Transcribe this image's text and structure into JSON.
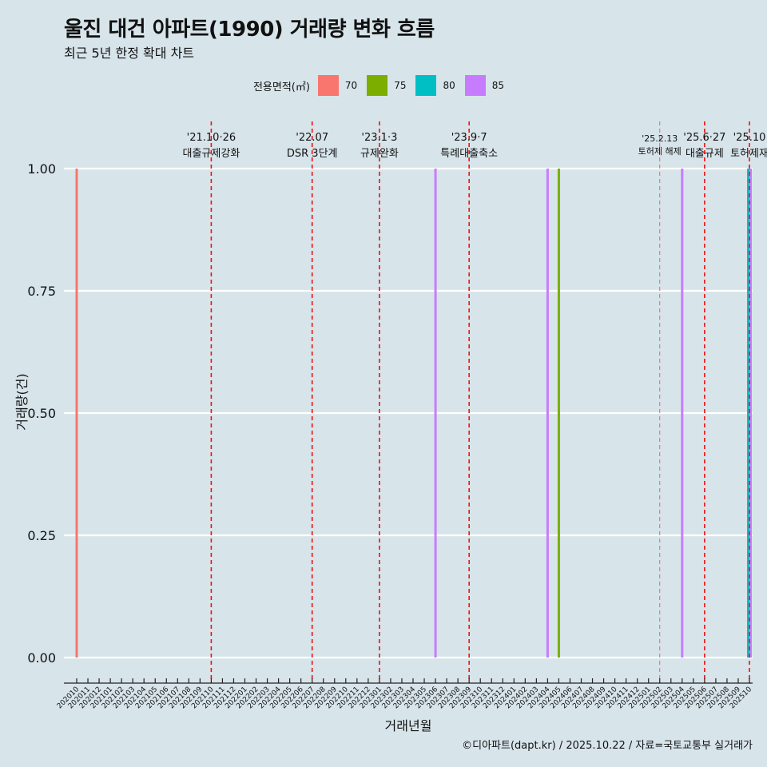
{
  "header": {
    "title": "울진 대건 아파트(1990) 거래량 변화 흐름",
    "subtitle": "최근 5년 한정 확대 차트"
  },
  "legend": {
    "title": "전용면적(㎡)",
    "items": [
      {
        "label": "70",
        "color": "#f8766d"
      },
      {
        "label": "75",
        "color": "#7cae00"
      },
      {
        "label": "80",
        "color": "#00bfc4"
      },
      {
        "label": "85",
        "color": "#c77cff"
      }
    ]
  },
  "caption": "©디아파트(dapt.kr) / 2025.10.22 / 자료=국토교통부 실거래가",
  "chart_data": {
    "type": "bar",
    "title": "울진 대건 아파트(1990) 거래량 변화 흐름",
    "xlabel": "거래년월",
    "ylabel": "거래량(건)",
    "ylim": [
      0,
      1
    ],
    "yticks": [
      "0.00",
      "0.25",
      "0.50",
      "0.75",
      "1.00"
    ],
    "categories": [
      "202010",
      "202011",
      "202012",
      "202101",
      "202102",
      "202103",
      "202104",
      "202105",
      "202106",
      "202107",
      "202108",
      "202109",
      "202110",
      "202111",
      "202112",
      "202201",
      "202202",
      "202203",
      "202204",
      "202205",
      "202206",
      "202207",
      "202208",
      "202209",
      "202210",
      "202211",
      "202212",
      "202301",
      "202302",
      "202303",
      "202304",
      "202305",
      "202306",
      "202307",
      "202308",
      "202309",
      "202310",
      "202311",
      "202312",
      "202401",
      "202402",
      "202403",
      "202404",
      "202405",
      "202406",
      "202407",
      "202408",
      "202409",
      "202410",
      "202411",
      "202412",
      "202501",
      "202502",
      "202503",
      "202504",
      "202505",
      "202506",
      "202507",
      "202508",
      "202509",
      "202510"
    ],
    "series": [
      {
        "name": "70",
        "color": "#f8766d",
        "points": [
          {
            "x": "202010",
            "value": 1
          }
        ]
      },
      {
        "name": "75",
        "color": "#7cae00",
        "points": [
          {
            "x": "202405",
            "value": 1
          }
        ]
      },
      {
        "name": "80",
        "color": "#00bfc4",
        "points": [
          {
            "x": "202510",
            "value": 1
          }
        ]
      },
      {
        "name": "85",
        "color": "#c77cff",
        "points": [
          {
            "x": "202306",
            "value": 1
          },
          {
            "x": "202404",
            "value": 1
          },
          {
            "x": "202504",
            "value": 1
          },
          {
            "x": "202510",
            "value": 1
          }
        ]
      }
    ],
    "annotations": [
      {
        "x": "202110",
        "date": "'21.10·26",
        "label": "대출규제강화",
        "style": "dashed"
      },
      {
        "x": "202207",
        "date": "'22.07",
        "label": "DSR 3단계",
        "style": "dashed"
      },
      {
        "x": "202301",
        "date": "'23.1·3",
        "label": "규제완화",
        "style": "dashed"
      },
      {
        "x": "202309",
        "date": "'23.9·7",
        "label": "특례대출축소",
        "style": "dashed"
      },
      {
        "x": "202502",
        "date": "'25.2.13",
        "label": "토허제 해제",
        "style": "thin"
      },
      {
        "x": "202506",
        "date": "'25.6·27",
        "label": "대출규제",
        "style": "dashed"
      },
      {
        "x": "202510",
        "date": "'25.10",
        "label": "토허제재",
        "style": "dashed"
      }
    ]
  }
}
